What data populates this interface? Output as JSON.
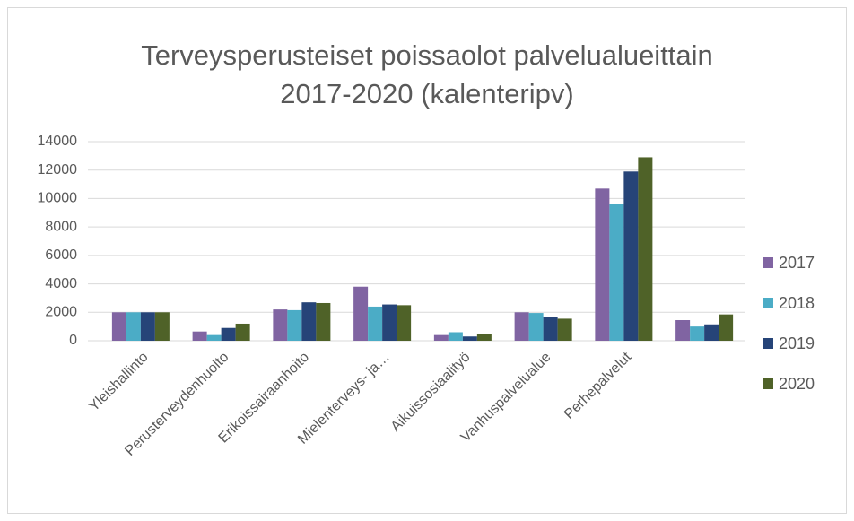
{
  "chart_data": {
    "type": "bar",
    "title": "Terveysperusteiset poissaolot palvelualueittain 2017-2020 (kalenteripv)",
    "categories": [
      "Yleishallinto",
      "Perusterveydenhuolto",
      "Erikoissairaanhoito",
      "Mielenterveys- ja…",
      "Aikuissosiaalityö",
      "Vanhuspalvelualue",
      "Perhepalvelut",
      null
    ],
    "series": [
      {
        "name": "2017",
        "color": "#8064a2",
        "values": [
          2000,
          650,
          2200,
          3800,
          400,
          2000,
          10700,
          1450
        ]
      },
      {
        "name": "2018",
        "color": "#4bacc6",
        "values": [
          2000,
          400,
          2150,
          2400,
          600,
          1950,
          9600,
          1000
        ]
      },
      {
        "name": "2019",
        "color": "#264478",
        "values": [
          2000,
          900,
          2700,
          2550,
          300,
          1650,
          11900,
          1150
        ]
      },
      {
        "name": "2020",
        "color": "#4f6228",
        "values": [
          2000,
          1200,
          2650,
          2500,
          500,
          1550,
          12900,
          1850
        ]
      }
    ],
    "ylim": [
      0,
      14000
    ],
    "yticks": [
      0,
      2000,
      4000,
      6000,
      8000,
      10000,
      12000,
      14000
    ],
    "grid": true,
    "legend": "right"
  }
}
